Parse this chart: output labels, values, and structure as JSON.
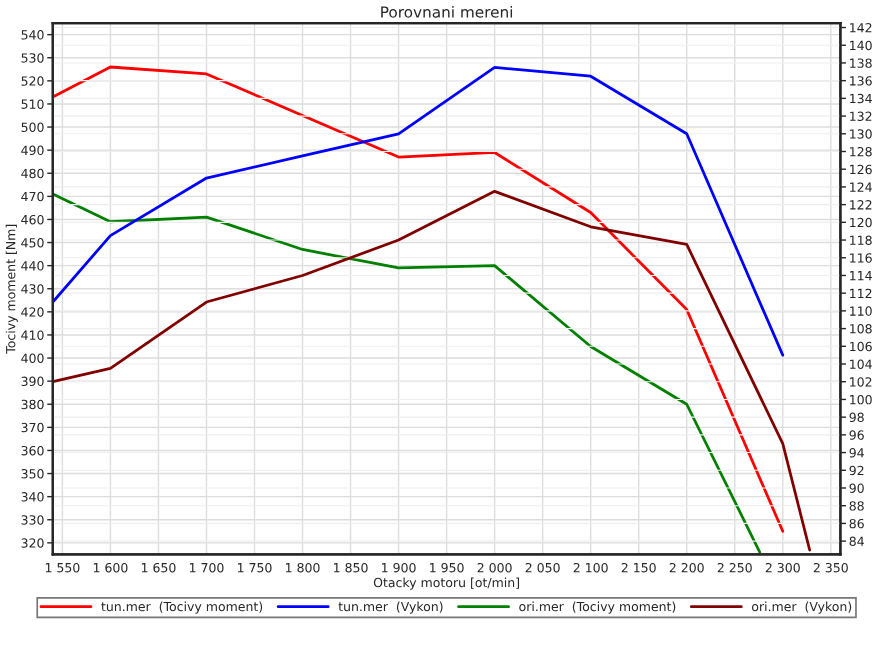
{
  "chart_data": {
    "type": "line",
    "title": "Porovnani mereni",
    "xlabel": "Otacky motoru [ot/min]",
    "ylabel": "Tocivy moment [Nm]",
    "x": [
      1540,
      1600,
      1700,
      1800,
      1900,
      2000,
      2100,
      2200,
      2300
    ],
    "series": [
      {
        "name": "tun.mer  (Tocivy moment)",
        "color": "#ff0000",
        "values": [
          513,
          526,
          523,
          505,
          487,
          489,
          463,
          421,
          325
        ]
      },
      {
        "name": "tun.mer  (Vykon)",
        "color": "#0000ff",
        "axis": "y2",
        "values": [
          111,
          118.5,
          125,
          127.5,
          130,
          137.5,
          136.5,
          130,
          105
        ]
      },
      {
        "name": "ori.mer  (Tocivy moment)",
        "color": "#008000",
        "x": [
          1540,
          1600,
          1700,
          1800,
          1900,
          2000,
          2100,
          2200,
          2276
        ],
        "values": [
          471,
          459,
          461,
          447,
          439,
          440,
          405,
          380,
          316
        ]
      },
      {
        "name": "ori.mer  (Vykon)",
        "color": "#800000",
        "axis": "y2",
        "x": [
          1540,
          1600,
          1700,
          1800,
          1900,
          2000,
          2100,
          2200,
          2300,
          2328
        ],
        "values": [
          102,
          103.5,
          111,
          114,
          118,
          123.5,
          119.5,
          117.5,
          95,
          83
        ]
      }
    ],
    "xlim": [
      1540,
      2360
    ],
    "xticks": [
      {
        "value": 1550,
        "label": "1 550"
      },
      {
        "value": 1600,
        "label": "1 600"
      },
      {
        "value": 1650,
        "label": "1 650"
      },
      {
        "value": 1700,
        "label": "1 700"
      },
      {
        "value": 1750,
        "label": "1 750"
      },
      {
        "value": 1800,
        "label": "1 800"
      },
      {
        "value": 1850,
        "label": "1 850"
      },
      {
        "value": 1900,
        "label": "1 900"
      },
      {
        "value": 1950,
        "label": "1 950"
      },
      {
        "value": 2000,
        "label": "2 000"
      },
      {
        "value": 2050,
        "label": "2 050"
      },
      {
        "value": 2100,
        "label": "2 100"
      },
      {
        "value": 2150,
        "label": "2 150"
      },
      {
        "value": 2200,
        "label": "2 200"
      },
      {
        "value": 2250,
        "label": "2 250"
      },
      {
        "value": 2300,
        "label": "2 300"
      },
      {
        "value": 2350,
        "label": "2 350"
      }
    ],
    "ylim": [
      315,
      545
    ],
    "yticks": [
      320,
      330,
      340,
      350,
      360,
      370,
      380,
      390,
      400,
      410,
      420,
      430,
      440,
      450,
      460,
      470,
      480,
      490,
      500,
      510,
      520,
      530,
      540
    ],
    "y2lim": [
      82.5,
      142.5
    ],
    "y2ticks": [
      84,
      86,
      88,
      90,
      92,
      94,
      96,
      98,
      100,
      102,
      104,
      106,
      108,
      110,
      112,
      114,
      116,
      118,
      120,
      122,
      124,
      126,
      128,
      130,
      132,
      134,
      136,
      138,
      140,
      142
    ],
    "grid": true,
    "legend": "bottom",
    "marker": "none",
    "line_style": "solid"
  }
}
